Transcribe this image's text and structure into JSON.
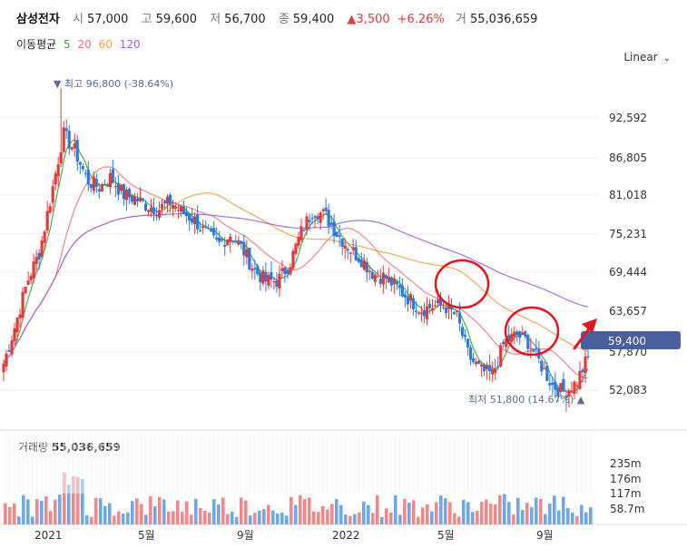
{
  "header": {
    "name": "삼성전자",
    "open_label": "시",
    "open": "57,000",
    "high_label": "고",
    "high": "59,600",
    "low_label": "저",
    "low": "56,700",
    "close_label": "종",
    "close": "59,400",
    "change": "▲3,500",
    "change_pct": "+6.26%",
    "volume_label": "거",
    "volume": "55,036,659"
  },
  "ma_legend": {
    "label": "이동평균",
    "items": [
      {
        "text": "5",
        "color": "#3aa63a"
      },
      {
        "text": "20",
        "color": "#e87a7a"
      },
      {
        "text": "60",
        "color": "#f0a040"
      },
      {
        "text": "120",
        "color": "#a060e0"
      }
    ]
  },
  "scale_label": "Linear",
  "price_axis": {
    "ticks": [
      "92,592",
      "86,805",
      "81,018",
      "75,231",
      "69,444",
      "63,657",
      "57,870",
      "52,083"
    ],
    "current": "59,400"
  },
  "annotations": {
    "high": "▼ 최고 96,800 (-38.64%)",
    "low": "최저 51,800 (14.67%) ▲"
  },
  "volume": {
    "label": "거래량",
    "value": "55,036,659",
    "ticks": [
      "235m",
      "176m",
      "117m",
      "58.7m"
    ]
  },
  "x_axis": {
    "ticks": [
      "2021",
      "5월",
      "9월",
      "2022",
      "5월",
      "9월"
    ]
  },
  "colors": {
    "up": "#e23b3b",
    "down": "#2d7ad8",
    "circle": "#e8141c",
    "badge": "#4a5fa0"
  },
  "chart_data": {
    "type": "candlestick",
    "close_samples": [
      58500,
      64000,
      70000,
      74000,
      82000,
      90500,
      88000,
      84000,
      83000,
      84500,
      82000,
      81500,
      80500,
      80000,
      81000,
      79500,
      78500,
      76500,
      75000,
      76500,
      74500,
      71500,
      70000,
      70000,
      72500,
      77000,
      80000,
      79000,
      76500,
      74500,
      73000,
      71000,
      70500,
      69000,
      67500,
      66000,
      66500,
      66500,
      65000,
      59500,
      57500,
      57000,
      61500,
      62500,
      61500,
      58500,
      55500,
      54500,
      55800,
      59400
    ],
    "price_ylim": [
      50000,
      100000
    ],
    "x_ticks": [
      "2021",
      "5월",
      "9월",
      "2022",
      "5월",
      "9월"
    ],
    "ma_periods": [
      5,
      20,
      60,
      120
    ],
    "volume_ticks_m": [
      235,
      176,
      117,
      58.7
    ],
    "last_close": 59400,
    "max_high": 96800,
    "min_low": 51800
  }
}
